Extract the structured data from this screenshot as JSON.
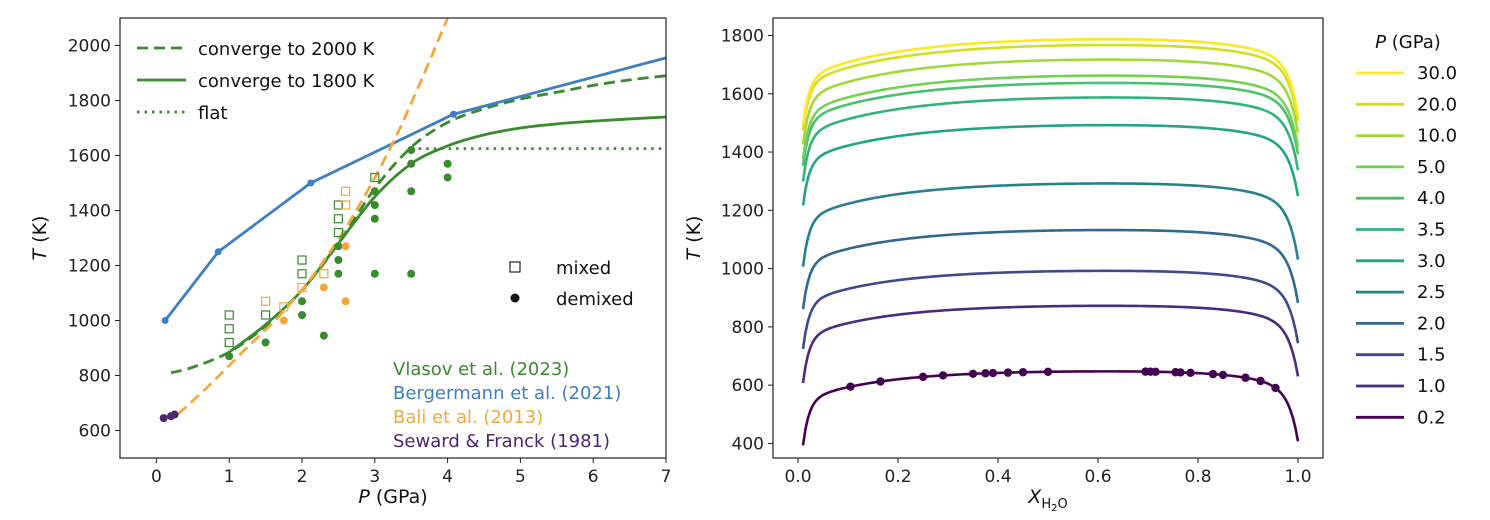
{
  "colors": {
    "vlasov": "#3a8a2e",
    "bergermann": "#3e7fc1",
    "bali": "#f2a83c",
    "seward": "#4b2671"
  },
  "chart_data": [
    {
      "type": "line",
      "xlabel_italic": "P",
      "xlabel_unit": " (GPa)",
      "ylabel_italic": "T",
      "ylabel_unit": " (K)",
      "xlim": [
        -0.5,
        7
      ],
      "ylim": [
        500,
        2100
      ],
      "xticks": [
        "0",
        "1",
        "2",
        "3",
        "4",
        "5",
        "6",
        "7"
      ],
      "yticks": [
        "600",
        "800",
        "1000",
        "1200",
        "1400",
        "1600",
        "1800",
        "2000"
      ],
      "legend_lines": [
        "converge to 2000 K",
        "converge to 1800 K",
        "flat"
      ],
      "legend_markers": [
        "mixed",
        "demixed"
      ],
      "citations": [
        {
          "text": "Vlasov et al. (2023)",
          "color": "#3a8a2e"
        },
        {
          "text": "Bergermann et al. (2021)",
          "color": "#3e7fc1"
        },
        {
          "text": "Bali et al. (2013)",
          "color": "#f2a83c"
        },
        {
          "text": "Seward & Franck (1981)",
          "color": "#4b2671"
        }
      ],
      "series": [
        {
          "name": "converge to 2000 K",
          "style": "dashed",
          "color": "#3a8a2e",
          "x": [
            0.2,
            0.5,
            1.0,
            1.5,
            2.0,
            2.5,
            3.0,
            3.5,
            4.0,
            4.5,
            5.0,
            5.5,
            6.0,
            6.5,
            7.0
          ],
          "y": [
            810,
            830,
            885,
            980,
            1110,
            1280,
            1480,
            1630,
            1720,
            1770,
            1805,
            1830,
            1855,
            1875,
            1890
          ]
        },
        {
          "name": "converge to 1800 K",
          "style": "solid",
          "color": "#3a8a2e",
          "x": [
            1.0,
            1.5,
            2.0,
            2.5,
            3.0,
            3.5,
            4.0,
            4.5,
            5.0,
            5.5,
            6.0,
            6.5,
            7.0
          ],
          "y": [
            885,
            985,
            1110,
            1280,
            1450,
            1570,
            1635,
            1675,
            1700,
            1715,
            1725,
            1733,
            1740
          ]
        },
        {
          "name": "flat",
          "style": "dotted",
          "color": "#3a8a2e",
          "x": [
            3.5,
            7.0
          ],
          "y": [
            1625,
            1625
          ]
        },
        {
          "name": "",
          "style": "solid-markers",
          "color": "#3e7fc1",
          "x": [
            0.12,
            0.85,
            2.12,
            4.08,
            7.0
          ],
          "y": [
            1000,
            1250,
            1500,
            1750,
            1955
          ],
          "marker_count": 4
        },
        {
          "name": "",
          "style": "dashed",
          "color": "#f2a83c",
          "x": [
            0.3,
            0.75,
            1.2,
            1.7,
            2.2,
            2.7,
            3.2,
            3.6,
            4.0
          ],
          "y": [
            660,
            770,
            890,
            1020,
            1180,
            1380,
            1620,
            1850,
            2100
          ]
        }
      ],
      "points_mixed": [
        {
          "x": 1.0,
          "y": 1020,
          "c": "#3a8a2e"
        },
        {
          "x": 1.0,
          "y": 970,
          "c": "#3a8a2e"
        },
        {
          "x": 1.0,
          "y": 920,
          "c": "#3a8a2e"
        },
        {
          "x": 1.5,
          "y": 1020,
          "c": "#3a8a2e"
        },
        {
          "x": 2.0,
          "y": 1220,
          "c": "#3a8a2e"
        },
        {
          "x": 2.0,
          "y": 1170,
          "c": "#3a8a2e"
        },
        {
          "x": 2.5,
          "y": 1420,
          "c": "#3a8a2e"
        },
        {
          "x": 2.5,
          "y": 1370,
          "c": "#3a8a2e"
        },
        {
          "x": 2.5,
          "y": 1320,
          "c": "#3a8a2e"
        },
        {
          "x": 3.0,
          "y": 1520,
          "c": "#3a8a2e"
        },
        {
          "x": 1.5,
          "y": 1070,
          "c": "#f2a83c"
        },
        {
          "x": 1.75,
          "y": 1050,
          "c": "#f2a83c"
        },
        {
          "x": 2.0,
          "y": 1120,
          "c": "#f2a83c"
        },
        {
          "x": 2.3,
          "y": 1170,
          "c": "#f2a83c"
        },
        {
          "x": 2.6,
          "y": 1470,
          "c": "#f2a83c"
        },
        {
          "x": 2.6,
          "y": 1420,
          "c": "#f2a83c"
        }
      ],
      "points_demixed": [
        {
          "x": 1.0,
          "y": 870,
          "c": "#3a8a2e"
        },
        {
          "x": 1.5,
          "y": 920,
          "c": "#3a8a2e"
        },
        {
          "x": 2.0,
          "y": 1020,
          "c": "#3a8a2e"
        },
        {
          "x": 2.0,
          "y": 1070,
          "c": "#3a8a2e"
        },
        {
          "x": 2.3,
          "y": 945,
          "c": "#3a8a2e"
        },
        {
          "x": 2.5,
          "y": 1170,
          "c": "#3a8a2e"
        },
        {
          "x": 2.5,
          "y": 1220,
          "c": "#3a8a2e"
        },
        {
          "x": 2.5,
          "y": 1270,
          "c": "#3a8a2e"
        },
        {
          "x": 3.0,
          "y": 1170,
          "c": "#3a8a2e"
        },
        {
          "x": 3.0,
          "y": 1370,
          "c": "#3a8a2e"
        },
        {
          "x": 3.0,
          "y": 1420,
          "c": "#3a8a2e"
        },
        {
          "x": 3.0,
          "y": 1470,
          "c": "#3a8a2e"
        },
        {
          "x": 3.5,
          "y": 1170,
          "c": "#3a8a2e"
        },
        {
          "x": 3.5,
          "y": 1470,
          "c": "#3a8a2e"
        },
        {
          "x": 3.5,
          "y": 1570,
          "c": "#3a8a2e"
        },
        {
          "x": 3.5,
          "y": 1620,
          "c": "#3a8a2e"
        },
        {
          "x": 4.0,
          "y": 1520,
          "c": "#3a8a2e"
        },
        {
          "x": 4.0,
          "y": 1570,
          "c": "#3a8a2e"
        },
        {
          "x": 1.75,
          "y": 1000,
          "c": "#f2a83c"
        },
        {
          "x": 2.3,
          "y": 1120,
          "c": "#f2a83c"
        },
        {
          "x": 2.6,
          "y": 1070,
          "c": "#f2a83c"
        },
        {
          "x": 2.6,
          "y": 1270,
          "c": "#f2a83c"
        },
        {
          "x": 0.1,
          "y": 645,
          "c": "#4b2671"
        },
        {
          "x": 0.2,
          "y": 652,
          "c": "#4b2671"
        },
        {
          "x": 0.25,
          "y": 658,
          "c": "#4b2671"
        }
      ]
    },
    {
      "type": "line",
      "xlabel": "X",
      "xlabel_sub": "H",
      "xlabel_sub2": "2",
      "xlabel_sub3": "O",
      "ylabel_italic": "T",
      "ylabel_unit": " (K)",
      "xlim": [
        -0.05,
        1.05
      ],
      "ylim": [
        350,
        1860
      ],
      "xticks": [
        "0.0",
        "0.2",
        "0.4",
        "0.6",
        "0.8",
        "1.0"
      ],
      "yticks": [
        "400",
        "600",
        "800",
        "1000",
        "1200",
        "1400",
        "1600",
        "1800"
      ],
      "legend_title_italic": "P",
      "legend_title_unit": " (GPa)",
      "series": [
        {
          "name": "30.0",
          "color": "#fde725",
          "tmax": 1790,
          "tstart": 1525,
          "tend": 1540
        },
        {
          "name": "20.0",
          "color": "#d0e11c",
          "tmax": 1770,
          "tstart": 1510,
          "tend": 1520
        },
        {
          "name": "10.0",
          "color": "#a0da39",
          "tmax": 1720,
          "tstart": 1460,
          "tend": 1480
        },
        {
          "name": "5.0",
          "color": "#75d054",
          "tmax": 1665,
          "tstart": 1410,
          "tend": 1430
        },
        {
          "name": "4.0",
          "color": "#4ac16d",
          "tmax": 1640,
          "tstart": 1385,
          "tend": 1405
        },
        {
          "name": "3.5",
          "color": "#2fb47c",
          "tmax": 1590,
          "tstart": 1330,
          "tend": 1350
        },
        {
          "name": "3.0",
          "color": "#21a585",
          "tmax": 1495,
          "tstart": 1245,
          "tend": 1260
        },
        {
          "name": "2.5",
          "color": "#27808e",
          "tmax": 1295,
          "tstart": 1030,
          "tend": 1040
        },
        {
          "name": "2.0",
          "color": "#31688e",
          "tmax": 1135,
          "tstart": 880,
          "tend": 890
        },
        {
          "name": "1.5",
          "color": "#3e4a89",
          "tmax": 995,
          "tstart": 740,
          "tend": 750
        },
        {
          "name": "1.0",
          "color": "#472d7b",
          "tmax": 875,
          "tstart": 620,
          "tend": 635
        },
        {
          "name": "0.2",
          "color": "#440154",
          "tmax": 650,
          "tstart": 400,
          "tend": 410
        }
      ],
      "points_x": [
        0.105,
        0.165,
        0.25,
        0.29,
        0.35,
        0.375,
        0.39,
        0.42,
        0.45,
        0.5,
        0.695,
        0.705,
        0.715,
        0.755,
        0.765,
        0.785,
        0.83,
        0.85,
        0.895,
        0.925,
        0.955
      ]
    }
  ]
}
